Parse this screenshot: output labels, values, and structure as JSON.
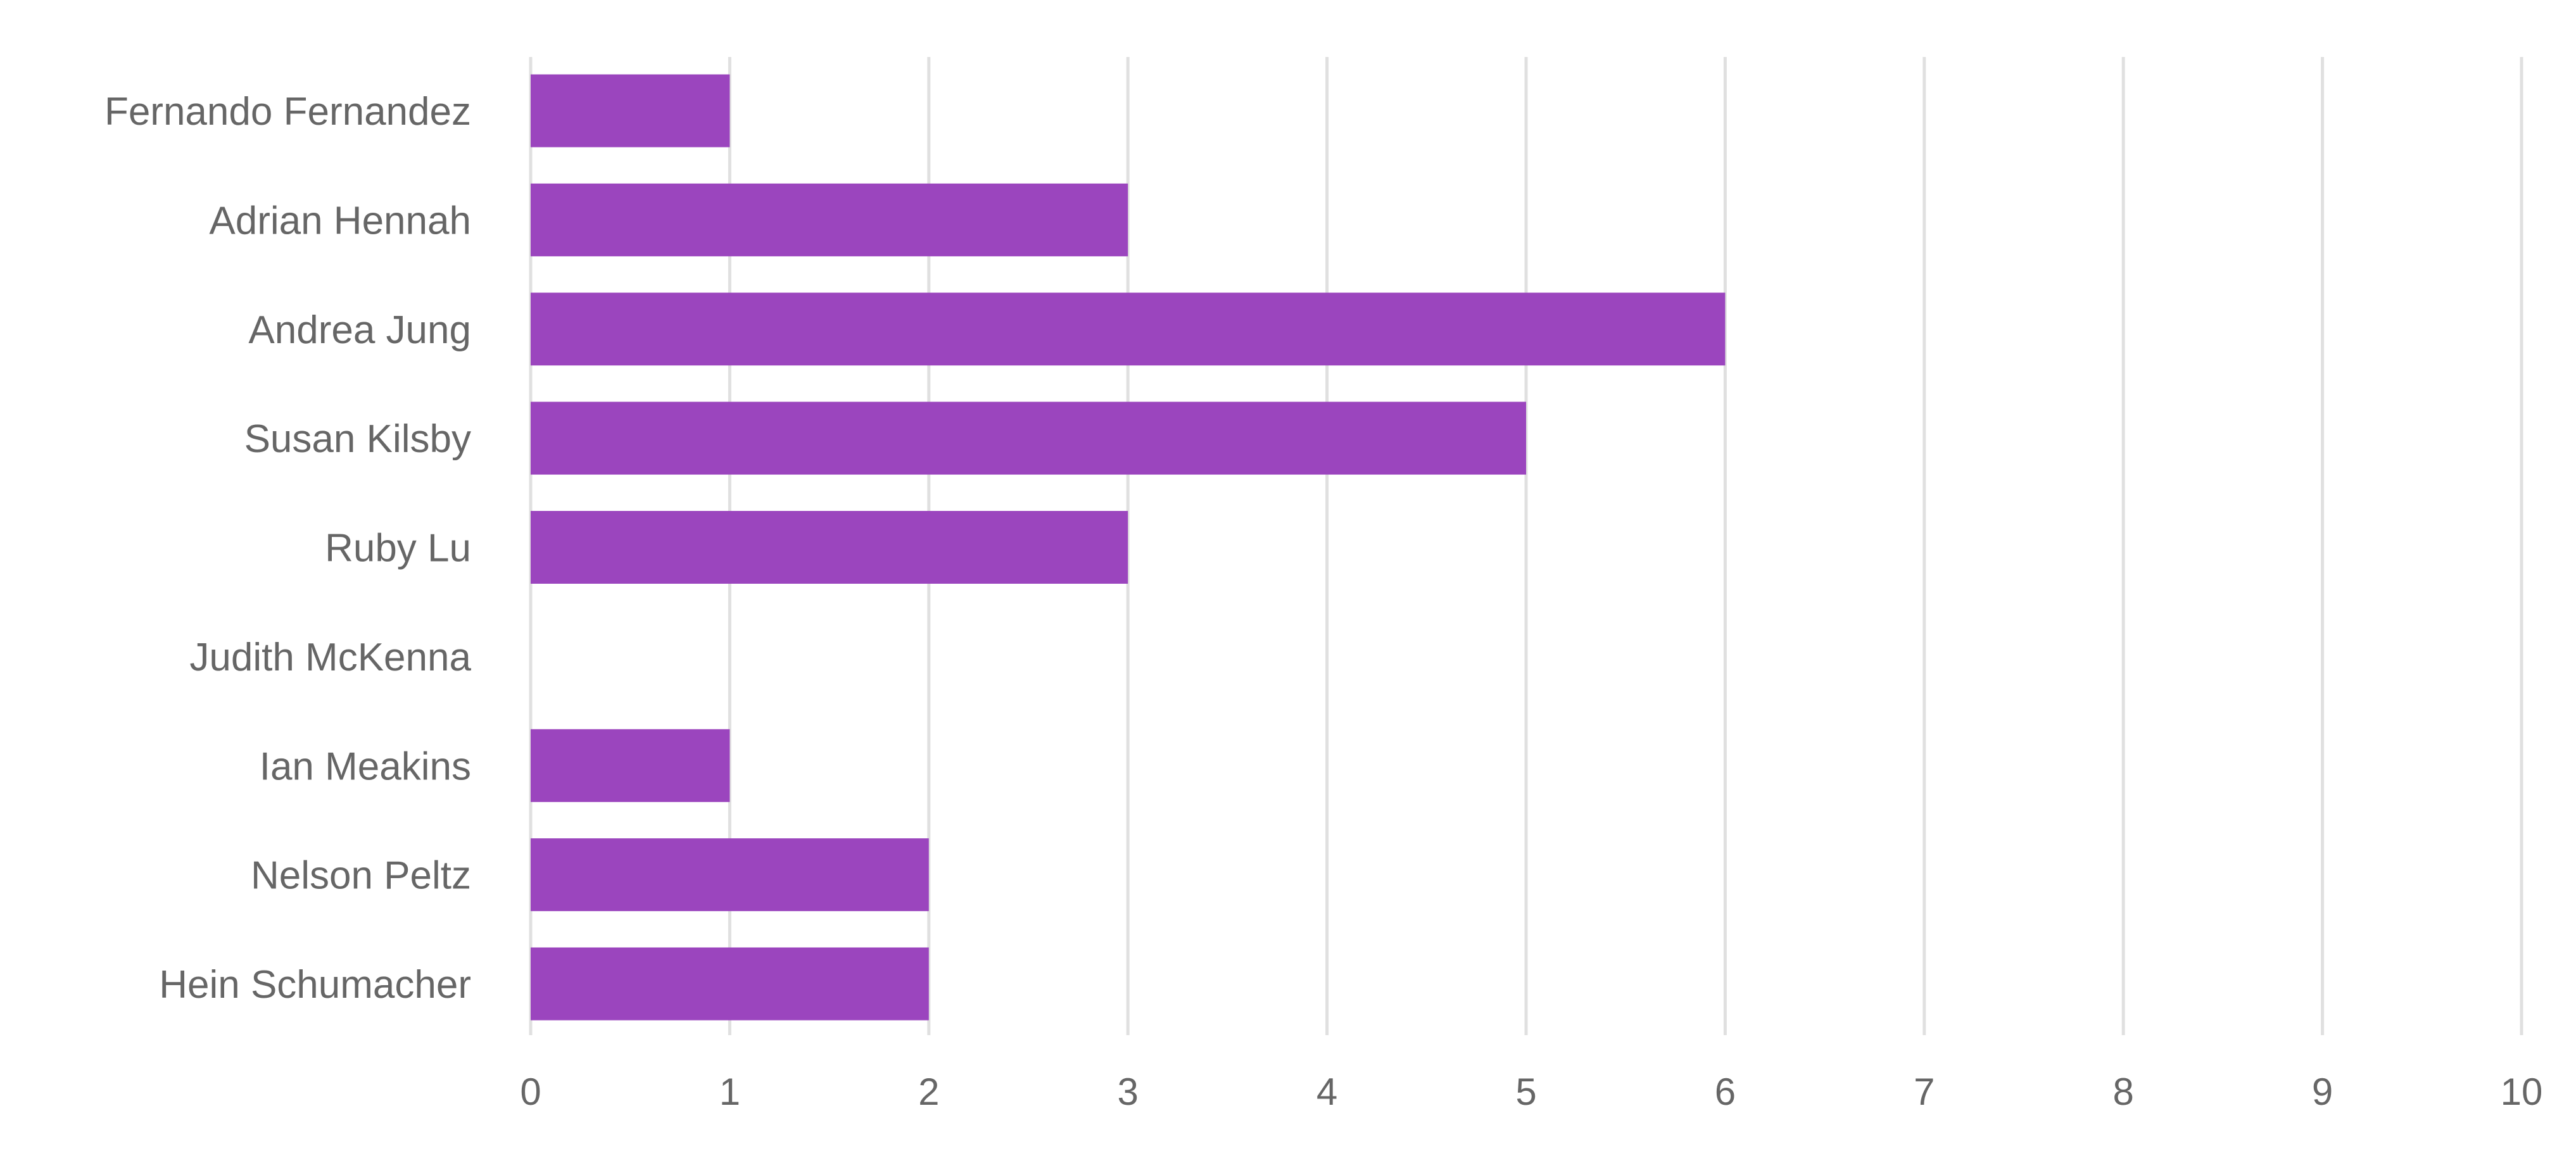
{
  "colors": {
    "bar": "#9b45be",
    "grid": "#e0e0e0",
    "text": "#666666",
    "background": "#ffffff"
  },
  "chart_data": {
    "type": "bar",
    "orientation": "horizontal",
    "categories": [
      "Fernando Fernandez",
      "Adrian Hennah",
      "Andrea Jung",
      "Susan Kilsby",
      "Ruby Lu",
      "Judith McKenna",
      "Ian Meakins",
      "Nelson Peltz",
      "Hein Schumacher"
    ],
    "values": [
      1,
      3,
      6,
      5,
      3,
      0,
      1,
      2,
      2
    ],
    "xlim": [
      0,
      10
    ],
    "xticks": [
      "0",
      "1",
      "2",
      "3",
      "4",
      "5",
      "6",
      "7",
      "8",
      "9",
      "10"
    ],
    "title": "",
    "xlabel": "",
    "ylabel": "",
    "grid": "vertical",
    "legend": "none"
  }
}
